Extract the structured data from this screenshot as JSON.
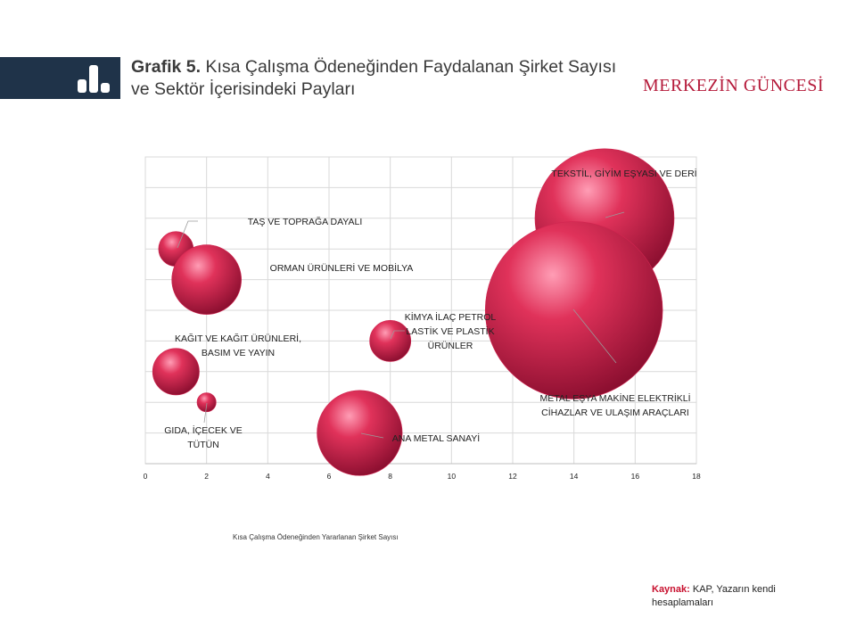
{
  "header": {
    "title_bold": "Grafik 5.",
    "title_rest": " Kısa Çalışma Ödeneğinden Faydalanan Şirket Sayısı ve Sektör İçerisindeki Payları",
    "brand": "MERKEZİN GÜNCESİ",
    "band_color": "#1f3349",
    "icon": "bar-chart-icon"
  },
  "chart_data": {
    "type": "bubble",
    "xlim": [
      0,
      18
    ],
    "ylim": [
      0,
      10
    ],
    "x_ticks": [
      "0",
      "2",
      "4",
      "6",
      "8",
      "10",
      "12",
      "14",
      "16",
      "18"
    ],
    "y_ticks": [],
    "grid": true,
    "xlabel": "Kısa Çalışma  Ödeneğinden Yararlanan Şirket Sayısı",
    "bubble_color": "#e0325a",
    "points": [
      {
        "label": "TAŞ VE TOPRAĞA DAYALI",
        "x": 1,
        "y": 7,
        "size": 1
      },
      {
        "label": "ORMAN ÜRÜNLERİ VE MOBİLYA",
        "x": 2,
        "y": 6,
        "size": 4
      },
      {
        "label": "KAĞIT VE KAĞIT ÜRÜNLERİ, BASIM VE YAYIN",
        "x": 1,
        "y": 3,
        "size": 1.8
      },
      {
        "label": "GIDA, İÇECEK VE TÜTÜN",
        "x": 2,
        "y": 2,
        "size": 0.3
      },
      {
        "label": "KİMYA İLAÇ PETROL LASTİK VE PLASTİK ÜRÜNLER",
        "x": 8,
        "y": 4,
        "size": 1.4
      },
      {
        "label": "ANA METAL SANAYİ",
        "x": 7,
        "y": 1,
        "size": 6
      },
      {
        "label": "TEKSTİL, GİYİM EŞYASI VE DERİ",
        "x": 15,
        "y": 8,
        "size": 16
      },
      {
        "label": "METAL EŞYA MAKİNE ELEKTRİKLİ CİHAZLAR VE ULAŞIM ARAÇLARI",
        "x": 14,
        "y": 5,
        "size": 26
      }
    ],
    "label_lines": [
      [
        "TAŞ VE TOPRAĞA DAYALI"
      ],
      [
        "ORMAN ÜRÜNLERİ VE MOBİLYA"
      ],
      [
        "KAĞIT VE KAĞIT ÜRÜNLERİ,",
        "BASIM VE YAYIN"
      ],
      [
        "GIDA, İÇECEK VE",
        "TÜTÜN"
      ],
      [
        "KİMYA İLAÇ PETROL",
        "LASTİK VE PLASTİK",
        "ÜRÜNLER"
      ],
      [
        "ANA METAL SANAYİ"
      ],
      [
        "TEKSTİL, GİYİM EŞYASI VE DERİ"
      ],
      [
        "METAL EŞYA MAKİNE ELEKTRİKLİ",
        "CİHAZLAR VE ULAŞIM ARAÇLARI"
      ]
    ]
  },
  "source": {
    "label": "Kaynak:",
    "text": " KAP, Yazarın kendi hesaplamaları"
  }
}
